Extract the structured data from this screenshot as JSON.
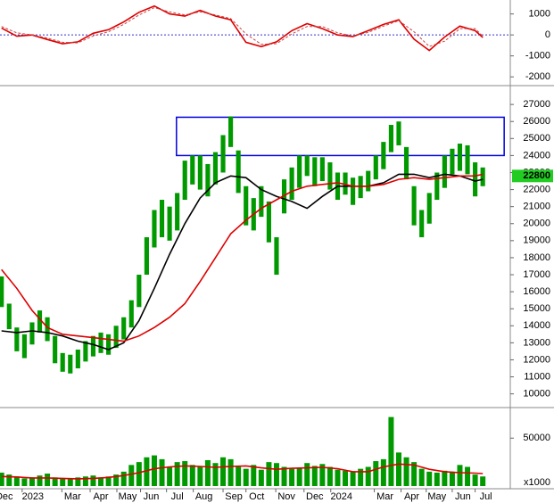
{
  "chart_data": [
    {
      "type": "line",
      "xlim": [
        -0.2,
        66.6
      ],
      "ylim": [
        -2290,
        1580
      ],
      "yticks": [
        1000,
        0,
        -1000,
        -2000
      ],
      "hline": 0,
      "hline_color": "#3333cc",
      "series": [
        {
          "color": "#dd0000",
          "dashed": false,
          "x": [
            0,
            2,
            4,
            6,
            8,
            10,
            12,
            14,
            16,
            18,
            20,
            22,
            24,
            26,
            28,
            30,
            32,
            34,
            36,
            38,
            40,
            42,
            44,
            46,
            48,
            50,
            52,
            54,
            56,
            58,
            60,
            62,
            63
          ],
          "values": [
            330,
            -60,
            0,
            -220,
            -420,
            -330,
            80,
            250,
            620,
            1080,
            1380,
            1000,
            900,
            1170,
            900,
            720,
            -350,
            -560,
            -330,
            200,
            540,
            300,
            0,
            -80,
            200,
            500,
            720,
            -200,
            -740,
            -100,
            420,
            200,
            -120
          ]
        },
        {
          "color": "#cc4444",
          "dashed": true,
          "x": [
            0,
            2,
            4,
            6,
            8,
            10,
            12,
            14,
            16,
            18,
            20,
            22,
            24,
            26,
            28,
            30,
            32,
            34,
            36,
            38,
            40,
            42,
            44,
            46,
            48,
            50,
            52,
            54,
            56,
            58,
            60,
            62,
            63
          ],
          "values": [
            400,
            100,
            0,
            -150,
            -350,
            -380,
            -50,
            150,
            500,
            950,
            1300,
            1100,
            950,
            1100,
            950,
            780,
            50,
            -450,
            -420,
            50,
            400,
            400,
            100,
            -50,
            120,
            420,
            680,
            150,
            -550,
            -300,
            300,
            300,
            -60
          ]
        }
      ]
    },
    {
      "type": "candlestick",
      "xlim": [
        -0.2,
        66.6
      ],
      "ylim": [
        9300,
        27950
      ],
      "color": "#009900",
      "yticks": [
        10000,
        11000,
        12000,
        13000,
        14000,
        15000,
        16000,
        17000,
        18000,
        19000,
        20000,
        21000,
        22000,
        23000,
        24000,
        25000,
        26000,
        27000
      ],
      "high": [
        16900,
        15300,
        13900,
        13500,
        14200,
        14900,
        14500,
        13400,
        12400,
        12300,
        12600,
        13100,
        13400,
        13600,
        13500,
        14000,
        14500,
        15500,
        17000,
        19200,
        20800,
        21400,
        21000,
        21800,
        23700,
        24000,
        24000,
        23500,
        24200,
        25200,
        26300,
        24300,
        22200,
        21500,
        22200,
        21300,
        19200,
        22600,
        23300,
        24000,
        24000,
        23900,
        23900,
        23600,
        23000,
        23000,
        22700,
        22800,
        23100,
        24000,
        24800,
        25800,
        26000,
        24500,
        22200,
        20800,
        21800,
        23000,
        24000,
        24400,
        24700,
        24600,
        23600,
        23300
      ],
      "low": [
        15100,
        13800,
        12500,
        12100,
        12900,
        13600,
        13100,
        11800,
        11300,
        11200,
        11500,
        11900,
        12200,
        12400,
        12300,
        12700,
        13200,
        13900,
        15100,
        17000,
        18600,
        19200,
        19000,
        19600,
        21400,
        22300,
        22000,
        21600,
        22300,
        23000,
        24500,
        21800,
        19900,
        19600,
        20400,
        18900,
        17000,
        20600,
        21400,
        22100,
        22800,
        22200,
        22500,
        22000,
        21400,
        21700,
        21100,
        21500,
        21900,
        22600,
        23200,
        24200,
        24600,
        22600,
        19900,
        19200,
        20000,
        21400,
        22100,
        22900,
        23100,
        22900,
        21600,
        22200
      ],
      "last_price_label": 22800,
      "last_price_color": "#22cc22",
      "zone": {
        "x": [
          22.9,
          65.8
        ],
        "y": [
          24000,
          26250
        ],
        "color": "#0000dd"
      },
      "series": [
        {
          "color": "#000000",
          "x": [
            0,
            2,
            4,
            6,
            8,
            10,
            12,
            14,
            16,
            18,
            20,
            22,
            24,
            26,
            28,
            30,
            32,
            34,
            36,
            38,
            40,
            42,
            44,
            46,
            48,
            50,
            52,
            54,
            56,
            58,
            60,
            62,
            63
          ],
          "values": [
            13700,
            13600,
            13700,
            13600,
            13400,
            13100,
            12900,
            12600,
            13000,
            14300,
            16200,
            18200,
            20000,
            21500,
            22400,
            22800,
            22700,
            22000,
            21600,
            21300,
            20900,
            21600,
            22200,
            22200,
            22200,
            22400,
            22900,
            22900,
            22700,
            22900,
            22800,
            22500,
            22600
          ]
        },
        {
          "color": "#dd0000",
          "x": [
            0,
            2,
            4,
            6,
            8,
            10,
            12,
            14,
            16,
            18,
            20,
            22,
            24,
            26,
            28,
            30,
            32,
            34,
            36,
            38,
            40,
            42,
            44,
            46,
            48,
            50,
            52,
            54,
            56,
            58,
            60,
            62,
            63
          ],
          "values": [
            17300,
            16200,
            14900,
            13900,
            13500,
            13400,
            13300,
            13200,
            13100,
            13400,
            13900,
            14500,
            15300,
            16600,
            18000,
            19400,
            20200,
            20900,
            21400,
            21900,
            22200,
            22300,
            22400,
            22200,
            22200,
            22300,
            22600,
            22700,
            22600,
            22700,
            22800,
            22800,
            22900
          ]
        }
      ]
    },
    {
      "type": "bar",
      "xlim": [
        -0.2,
        66.6
      ],
      "ylim": [
        0,
        80000
      ],
      "yticks": [
        50000
      ],
      "color": "#009900",
      "unit_label": "x1000",
      "values": [
        14000,
        12000,
        10000,
        8000,
        9000,
        11000,
        13000,
        9000,
        8000,
        7000,
        9000,
        10000,
        11000,
        9000,
        10000,
        12000,
        15000,
        22000,
        25000,
        30000,
        32000,
        28000,
        20000,
        25000,
        26000,
        22000,
        20000,
        27000,
        24000,
        30000,
        28000,
        20000,
        18000,
        22000,
        17000,
        25000,
        24000,
        20000,
        18000,
        19000,
        24000,
        21000,
        23000,
        20000,
        17000,
        16000,
        15000,
        18000,
        20000,
        26000,
        28000,
        72000,
        35000,
        30000,
        25000,
        18000,
        15000,
        14000,
        16000,
        15000,
        22000,
        20000,
        12000,
        10000
      ],
      "xticks": [
        {
          "value": 0.35,
          "label": "Dec"
        },
        {
          "value": 4.1,
          "label": "2023"
        },
        {
          "value": 9.3,
          "label": "Mar"
        },
        {
          "value": 13,
          "label": "Apr"
        },
        {
          "value": 16.5,
          "label": "May"
        },
        {
          "value": 19.6,
          "label": "Jun"
        },
        {
          "value": 23,
          "label": "Jul"
        },
        {
          "value": 26.5,
          "label": "Aug"
        },
        {
          "value": 30.4,
          "label": "Sep"
        },
        {
          "value": 33.4,
          "label": "Oct"
        },
        {
          "value": 37.3,
          "label": "Nov"
        },
        {
          "value": 41,
          "label": "Dec"
        },
        {
          "value": 44.5,
          "label": "2024"
        },
        {
          "value": 50.2,
          "label": "Mar"
        },
        {
          "value": 53.7,
          "label": "Apr"
        },
        {
          "value": 57,
          "label": "May"
        },
        {
          "value": 60.4,
          "label": "Jun"
        },
        {
          "value": 63.4,
          "label": "Jul"
        }
      ],
      "series": [
        {
          "color": "#dd0000",
          "x": [
            0,
            2,
            4,
            6,
            8,
            10,
            12,
            14,
            16,
            18,
            20,
            22,
            24,
            26,
            28,
            30,
            32,
            34,
            36,
            38,
            40,
            42,
            44,
            46,
            48,
            50,
            52,
            54,
            56,
            58,
            60,
            62,
            63
          ],
          "values": [
            10000,
            9500,
            8500,
            8500,
            8000,
            7500,
            8000,
            9000,
            11000,
            14000,
            18000,
            20000,
            21000,
            20500,
            19500,
            20500,
            21000,
            19000,
            17500,
            18500,
            19000,
            19500,
            18000,
            15000,
            15000,
            20000,
            23000,
            22000,
            17500,
            15000,
            14000,
            13500,
            13000
          ]
        }
      ]
    }
  ]
}
